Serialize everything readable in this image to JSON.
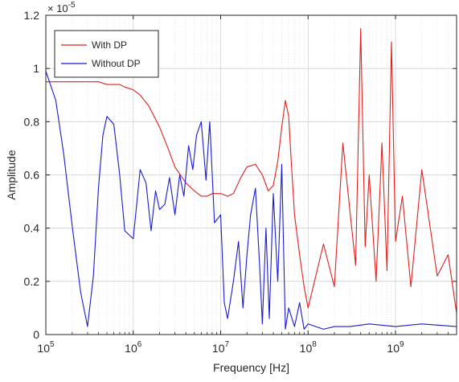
{
  "chart_data": {
    "type": "line",
    "xlabel": "Frequency [Hz]",
    "ylabel": "Amplitude",
    "x_scale": "log",
    "xlim": [
      100000,
      5000000000
    ],
    "ylim": [
      0,
      1.2e-05
    ],
    "y_multiplier_label": "× 10",
    "y_multiplier_exponent": "-5",
    "x_ticks": [
      {
        "base": "10",
        "exp": "5",
        "value": 100000
      },
      {
        "base": "10",
        "exp": "6",
        "value": 1000000
      },
      {
        "base": "10",
        "exp": "7",
        "value": 10000000
      },
      {
        "base": "10",
        "exp": "8",
        "value": 100000000
      },
      {
        "base": "10",
        "exp": "9",
        "value": 1000000000
      }
    ],
    "y_ticks": [
      {
        "label": "0",
        "value": 0
      },
      {
        "label": "0.2",
        "value": 2e-06
      },
      {
        "label": "0.4",
        "value": 4e-06
      },
      {
        "label": "0.6",
        "value": 6e-06
      },
      {
        "label": "0.8",
        "value": 8e-06
      },
      {
        "label": "1",
        "value": 1e-05
      },
      {
        "label": "1.2",
        "value": 1.2e-05
      }
    ],
    "grid": true,
    "minor_grid": true,
    "legend_position": "top-left",
    "series": [
      {
        "name": "With DP",
        "color": "#e02020",
        "x": [
          100000,
          150000,
          200000,
          300000,
          400000,
          500000,
          600000,
          700000,
          800000,
          1000000,
          1200000,
          1500000,
          2000000,
          2500000,
          3000000,
          4000000,
          5000000,
          6000000,
          7000000,
          8000000,
          10000000,
          12000000,
          14000000,
          17000000,
          20000000,
          25000000,
          30000000,
          35000000,
          40000000,
          45000000,
          50000000,
          55000000,
          60000000,
          65000000,
          70000000,
          80000000,
          90000000,
          100000000,
          150000000,
          200000000,
          250000000,
          300000000,
          350000000,
          400000000,
          450000000,
          500000000,
          600000000,
          700000000,
          800000000,
          900000000,
          1000000000,
          1200000000,
          1500000000,
          2000000000,
          2500000000,
          3000000000,
          4000000000,
          5000000000
        ],
        "y": [
          9.5e-06,
          9.5e-06,
          9.5e-06,
          9.5e-06,
          9.5e-06,
          9.4e-06,
          9.4e-06,
          9.4e-06,
          9.3e-06,
          9.2e-06,
          9e-06,
          8.6e-06,
          7.8e-06,
          7e-06,
          6.3e-06,
          5.7e-06,
          5.4e-06,
          5.2e-06,
          5.2e-06,
          5.3e-06,
          5.3e-06,
          5.2e-06,
          5.3e-06,
          5.9e-06,
          6.3e-06,
          6.4e-06,
          6e-06,
          5.4e-06,
          5.6e-06,
          6.5e-06,
          7.8e-06,
          8.8e-06,
          8.2e-06,
          6.2e-06,
          4.5e-06,
          3e-06,
          1.8e-06,
          1e-06,
          3.4e-06,
          1.8e-06,
          7.2e-06,
          4.7e-06,
          2.6e-06,
          1.15e-05,
          3.3e-06,
          6e-06,
          2e-06,
          7.2e-06,
          2.4e-06,
          1.1e-05,
          3.5e-06,
          5.2e-06,
          1.8e-06,
          6.2e-06,
          4e-06,
          2.2e-06,
          3e-06,
          8e-07
        ]
      },
      {
        "name": "Without DP",
        "color": "#1a1ad0",
        "x": [
          100000,
          130000,
          160000,
          200000,
          250000,
          300000,
          350000,
          400000,
          450000,
          500000,
          600000,
          700000,
          800000,
          1000000,
          1200000,
          1400000,
          1600000,
          1800000,
          2000000,
          2300000,
          2600000,
          3000000,
          3400000,
          3800000,
          4300000,
          4800000,
          5300000,
          6000000,
          6800000,
          7500000,
          8500000,
          10000000,
          11000000,
          12000000,
          14000000,
          16000000,
          18000000,
          20000000,
          22000000,
          25000000,
          28000000,
          30000000,
          33000000,
          36000000,
          40000000,
          45000000,
          50000000,
          55000000,
          60000000,
          70000000,
          80000000,
          90000000,
          100000000,
          150000000,
          200000000,
          300000000,
          500000000,
          1000000000,
          2000000000,
          5000000000
        ],
        "y": [
          9.9e-06,
          8.8e-06,
          6.8e-06,
          4.1e-06,
          1.6e-06,
          3e-07,
          2.2e-06,
          5.5e-06,
          7.5e-06,
          8.2e-06,
          7.9e-06,
          6e-06,
          3.9e-06,
          3.6e-06,
          6.2e-06,
          5.7e-06,
          3.9e-06,
          5.4e-06,
          4.7e-06,
          4.9e-06,
          5.9e-06,
          4.5e-06,
          6e-06,
          5.2e-06,
          7.1e-06,
          6.2e-06,
          7.5e-06,
          8e-06,
          5.8e-06,
          8e-06,
          4.2e-06,
          4.5e-06,
          1.2e-06,
          6e-07,
          2e-06,
          3.5e-06,
          1e-06,
          3e-06,
          4.5e-06,
          5.5e-06,
          2.5e-06,
          4e-07,
          4e-06,
          6e-07,
          5.3e-06,
          2e-06,
          6.4e-06,
          2e-07,
          1e-06,
          3e-07,
          1.2e-06,
          2e-07,
          4e-07,
          2e-07,
          3e-07,
          3e-07,
          4e-07,
          3e-07,
          4e-07,
          3e-07
        ]
      }
    ]
  }
}
